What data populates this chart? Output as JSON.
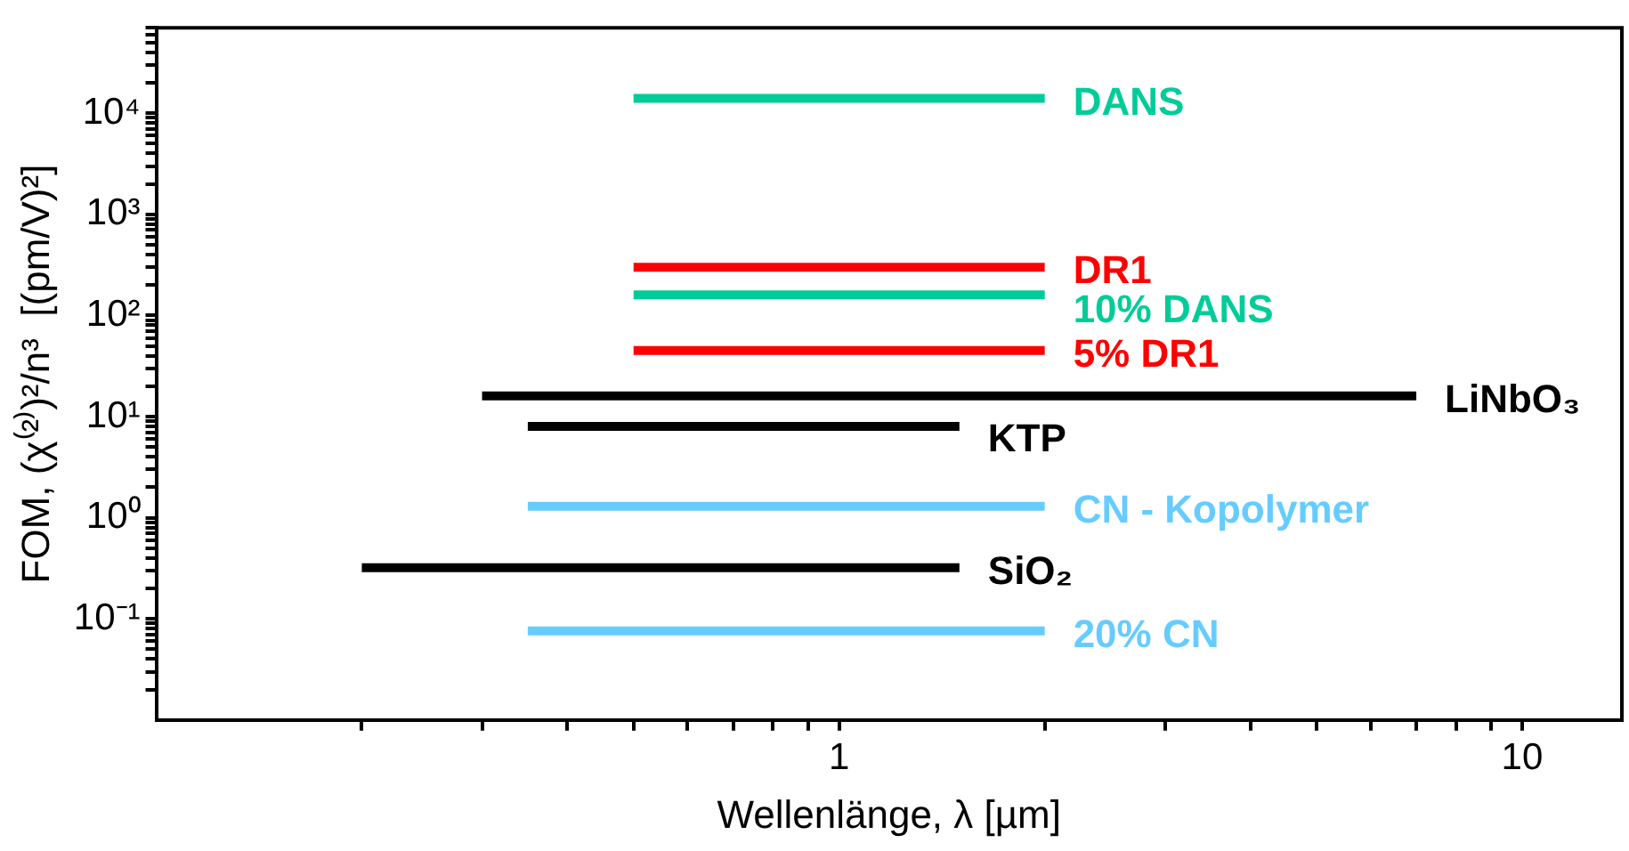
{
  "chart_data": {
    "type": "line",
    "xlabel": "Wellenlänge, λ [µm]",
    "ylabel": "FOM, (χ⁽²⁾)²/n³  [(pm/V)²]",
    "log": "xy",
    "grid": false,
    "xlim": [
      0.1,
      14
    ],
    "ylim": [
      0.01,
      70000
    ],
    "xticks": [
      {
        "value": 0.2,
        "label": null
      },
      {
        "value": 0.3,
        "label": null
      },
      {
        "value": 0.4,
        "label": null
      },
      {
        "value": 0.5,
        "label": null
      },
      {
        "value": 0.6,
        "label": null
      },
      {
        "value": 0.7,
        "label": null
      },
      {
        "value": 0.8,
        "label": null
      },
      {
        "value": 0.9,
        "label": null
      },
      1,
      {
        "value": 2,
        "label": null
      },
      {
        "value": 3,
        "label": null
      },
      {
        "value": 4,
        "label": null
      },
      {
        "value": 5,
        "label": null
      },
      {
        "value": 6,
        "label": null
      },
      {
        "value": 7,
        "label": null
      },
      {
        "value": 8,
        "label": null
      },
      {
        "value": 9,
        "label": null
      },
      10
    ],
    "yticks": [
      {
        "value": 0.02,
        "label": null
      },
      {
        "value": 0.03,
        "label": null
      },
      {
        "value": 0.04,
        "label": null
      },
      {
        "value": 0.05,
        "label": null
      },
      {
        "value": 0.06,
        "label": null
      },
      {
        "value": 0.07,
        "label": null
      },
      {
        "value": 0.08,
        "label": null
      },
      {
        "value": 0.09,
        "label": null
      },
      {
        "value": 0.1,
        "label": "10⁻¹"
      },
      {
        "value": 0.2,
        "label": null
      },
      {
        "value": 0.3,
        "label": null
      },
      {
        "value": 0.4,
        "label": null
      },
      {
        "value": 0.5,
        "label": null
      },
      {
        "value": 0.6,
        "label": null
      },
      {
        "value": 0.7,
        "label": null
      },
      {
        "value": 0.8,
        "label": null
      },
      {
        "value": 0.9,
        "label": null
      },
      {
        "value": 1,
        "label": "10⁰"
      },
      {
        "value": 2,
        "label": null
      },
      {
        "value": 3,
        "label": null
      },
      {
        "value": 4,
        "label": null
      },
      {
        "value": 5,
        "label": null
      },
      {
        "value": 6,
        "label": null
      },
      {
        "value": 7,
        "label": null
      },
      {
        "value": 8,
        "label": null
      },
      {
        "value": 9,
        "label": null
      },
      {
        "value": 10,
        "label": "10¹"
      },
      {
        "value": 20,
        "label": null
      },
      {
        "value": 30,
        "label": null
      },
      {
        "value": 40,
        "label": null
      },
      {
        "value": 50,
        "label": null
      },
      {
        "value": 60,
        "label": null
      },
      {
        "value": 70,
        "label": null
      },
      {
        "value": 80,
        "label": null
      },
      {
        "value": 90,
        "label": null
      },
      {
        "value": 100,
        "label": "10²"
      },
      {
        "value": 200,
        "label": null
      },
      {
        "value": 300,
        "label": null
      },
      {
        "value": 400,
        "label": null
      },
      {
        "value": 500,
        "label": null
      },
      {
        "value": 600,
        "label": null
      },
      {
        "value": 700,
        "label": null
      },
      {
        "value": 800,
        "label": null
      },
      {
        "value": 900,
        "label": null
      },
      {
        "value": 1000,
        "label": "10³"
      },
      {
        "value": 2000,
        "label": null
      },
      {
        "value": 3000,
        "label": null
      },
      {
        "value": 4000,
        "label": null
      },
      {
        "value": 5000,
        "label": null
      },
      {
        "value": 6000,
        "label": null
      },
      {
        "value": 7000,
        "label": null
      },
      {
        "value": 8000,
        "label": null
      },
      {
        "value": 9000,
        "label": null
      },
      {
        "value": 10000,
        "label": "10⁴"
      },
      {
        "value": 20000,
        "label": null
      },
      {
        "value": 30000,
        "label": null
      },
      {
        "value": 40000,
        "label": null
      },
      {
        "value": 50000,
        "label": null
      },
      {
        "value": 60000,
        "label": null
      },
      {
        "value": 70000,
        "label": null
      }
    ],
    "series": [
      {
        "name": "DANS",
        "color": "#00cc99",
        "x": [
          0.5,
          2
        ],
        "values": [
          14000,
          14000
        ]
      },
      {
        "name": "DR1",
        "color": "#ff0000",
        "x": [
          0.5,
          2
        ],
        "values": [
          300,
          300
        ]
      },
      {
        "name": "10% DANS",
        "color": "#00cc99",
        "x": [
          0.5,
          2
        ],
        "values": [
          160,
          160
        ]
      },
      {
        "name": "5% DR1",
        "color": "#ff0000",
        "x": [
          0.5,
          2
        ],
        "values": [
          45,
          45
        ]
      },
      {
        "name": "LiNbO₃",
        "color": "#000000",
        "x": [
          0.3,
          7
        ],
        "values": [
          16,
          16
        ]
      },
      {
        "name": "KTP",
        "color": "#000000",
        "x": [
          0.35,
          1.5
        ],
        "values": [
          8,
          8
        ]
      },
      {
        "name": "CN - Kopolymer",
        "color": "#66ccff",
        "x": [
          0.35,
          2
        ],
        "values": [
          1.3,
          1.3
        ]
      },
      {
        "name": "SiO₂",
        "color": "#000000",
        "x": [
          0.2,
          1.5
        ],
        "values": [
          0.32,
          0.32
        ]
      },
      {
        "name": "20% CN",
        "color": "#66ccff",
        "x": [
          0.35,
          2
        ],
        "values": [
          0.076,
          0.076
        ]
      }
    ]
  }
}
